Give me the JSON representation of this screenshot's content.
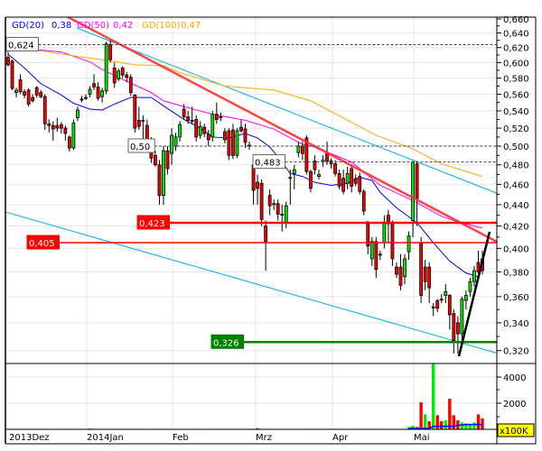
{
  "legend": [
    {
      "label": "GD(20)",
      "value": "0,38",
      "color": "#0000ee"
    },
    {
      "label": "GD(50)",
      "value": "0,42",
      "color": "#ff00ff"
    },
    {
      "label": "GD(100)",
      "value": "0,47",
      "color": "#ffa500"
    }
  ],
  "colors": {
    "up": "#00ee00",
    "down": "#ff0000",
    "trend_red": "#ff3030",
    "channel": "#00b0f0",
    "support_green": "#008000",
    "volume_avg": "#0000ff",
    "grid": "#e6e6e6"
  },
  "price_axis": {
    "scale": "log",
    "ticks": [
      0.66,
      0.64,
      0.62,
      0.6,
      0.58,
      0.56,
      0.54,
      0.52,
      0.5,
      0.48,
      0.46,
      0.44,
      0.42,
      0.4,
      0.38,
      0.36,
      0.34,
      0.32
    ],
    "labels": [
      "0,660",
      "0,640",
      "0,620",
      "0,600",
      "0,580",
      "0,560",
      "0,540",
      "0,520",
      "0,500",
      "0,480",
      "0,460",
      "0,440",
      "0,420",
      "0,400",
      "0,380",
      "0,360",
      "0,340",
      "0,320"
    ]
  },
  "volume_axis": {
    "ticks": [
      4000,
      2000
    ],
    "labels": [
      "4000",
      "2000"
    ],
    "unit": "x100K"
  },
  "x_axis": {
    "labels": [
      "2013Dez",
      "2014Jan",
      "Feb",
      "Mrz",
      "Apr",
      "Mai"
    ]
  },
  "levels": [
    {
      "label": "0,624",
      "value": 0.624,
      "style": "dashed"
    },
    {
      "label": "0,50",
      "value": 0.5,
      "style": "dashed"
    },
    {
      "label": "0,483",
      "value": 0.483,
      "style": "dashed"
    },
    {
      "label": "0,423",
      "value": 0.423,
      "style": "red-thick"
    },
    {
      "label": "0,405",
      "value": 0.405,
      "style": "red-thin"
    },
    {
      "label": "0,326",
      "value": 0.326,
      "style": "green"
    }
  ],
  "chart_data": {
    "type": "candlestick",
    "ohlc_order": [
      "open",
      "high",
      "low",
      "close"
    ],
    "candles": [
      [
        0.607,
        0.615,
        0.595,
        0.597
      ],
      [
        0.602,
        0.604,
        0.565,
        0.567
      ],
      [
        0.562,
        0.568,
        0.556,
        0.565
      ],
      [
        0.578,
        0.585,
        0.56,
        0.563
      ],
      [
        0.563,
        0.566,
        0.555,
        0.559
      ],
      [
        0.565,
        0.567,
        0.545,
        0.548
      ],
      [
        0.556,
        0.56,
        0.55,
        0.552
      ],
      [
        0.568,
        0.57,
        0.556,
        0.559
      ],
      [
        0.562,
        0.565,
        0.555,
        0.557
      ],
      [
        0.557,
        0.56,
        0.518,
        0.525
      ],
      [
        0.525,
        0.53,
        0.515,
        0.523
      ],
      [
        0.523,
        0.528,
        0.506,
        0.519
      ],
      [
        0.523,
        0.532,
        0.516,
        0.52
      ],
      [
        0.524,
        0.527,
        0.514,
        0.52
      ],
      [
        0.52,
        0.523,
        0.506,
        0.514
      ],
      [
        0.51,
        0.512,
        0.494,
        0.498
      ],
      [
        0.498,
        0.53,
        0.496,
        0.526
      ],
      [
        0.532,
        0.545,
        0.528,
        0.541
      ],
      [
        0.554,
        0.558,
        0.55,
        0.554
      ],
      [
        0.556,
        0.56,
        0.553,
        0.556
      ],
      [
        0.56,
        0.57,
        0.556,
        0.566
      ],
      [
        0.573,
        0.585,
        0.565,
        0.569
      ],
      [
        0.569,
        0.575,
        0.552,
        0.555
      ],
      [
        0.557,
        0.568,
        0.55,
        0.564
      ],
      [
        0.564,
        0.628,
        0.56,
        0.625
      ],
      [
        0.624,
        0.63,
        0.6,
        0.604
      ],
      [
        0.593,
        0.6,
        0.568,
        0.574
      ],
      [
        0.579,
        0.592,
        0.576,
        0.589
      ],
      [
        0.593,
        0.595,
        0.58,
        0.584
      ],
      [
        0.584,
        0.588,
        0.575,
        0.581
      ],
      [
        0.581,
        0.585,
        0.558,
        0.562
      ],
      [
        0.559,
        0.56,
        0.515,
        0.52
      ],
      [
        0.529,
        0.545,
        0.518,
        0.522
      ],
      [
        0.529,
        0.535,
        0.505,
        0.529
      ],
      [
        0.523,
        0.53,
        0.5,
        0.507
      ],
      [
        0.504,
        0.51,
        0.482,
        0.487
      ],
      [
        0.49,
        0.495,
        0.478,
        0.48
      ],
      [
        0.48,
        0.485,
        0.44,
        0.449
      ],
      [
        0.449,
        0.5,
        0.44,
        0.495
      ],
      [
        0.495,
        0.5,
        0.47,
        0.476
      ],
      [
        0.492,
        0.52,
        0.48,
        0.512
      ],
      [
        0.5,
        0.515,
        0.495,
        0.51
      ],
      [
        0.51,
        0.528,
        0.505,
        0.524
      ],
      [
        0.542,
        0.548,
        0.53,
        0.533
      ],
      [
        0.533,
        0.54,
        0.525,
        0.529
      ],
      [
        0.529,
        0.545,
        0.525,
        0.529
      ],
      [
        0.53,
        0.535,
        0.505,
        0.51
      ],
      [
        0.512,
        0.528,
        0.508,
        0.522
      ],
      [
        0.521,
        0.525,
        0.51,
        0.514
      ],
      [
        0.513,
        0.518,
        0.5,
        0.507
      ],
      [
        0.51,
        0.54,
        0.505,
        0.536
      ],
      [
        0.536,
        0.55,
        0.525,
        0.53
      ],
      [
        0.533,
        0.538,
        0.528,
        0.533
      ],
      [
        0.516,
        0.52,
        0.503,
        0.507
      ],
      [
        0.517,
        0.52,
        0.485,
        0.49
      ],
      [
        0.518,
        0.525,
        0.486,
        0.49
      ],
      [
        0.49,
        0.52,
        0.487,
        0.517
      ],
      [
        0.521,
        0.53,
        0.515,
        0.517
      ],
      [
        0.519,
        0.525,
        0.498,
        0.504
      ],
      [
        0.501,
        0.505,
        0.496,
        0.501
      ],
      [
        0.48,
        0.482,
        0.44,
        0.454
      ],
      [
        0.462,
        0.47,
        0.44,
        0.456
      ],
      [
        0.461,
        0.465,
        0.42,
        0.426
      ],
      [
        0.42,
        0.425,
        0.381,
        0.406
      ],
      [
        0.449,
        0.455,
        0.43,
        0.439
      ],
      [
        0.441,
        0.445,
        0.435,
        0.441
      ],
      [
        0.441,
        0.445,
        0.425,
        0.431
      ],
      [
        0.43,
        0.44,
        0.415,
        0.431
      ],
      [
        0.423,
        0.443,
        0.418,
        0.439
      ],
      [
        0.466,
        0.475,
        0.44,
        0.467
      ],
      [
        0.471,
        0.48,
        0.455,
        0.475
      ],
      [
        0.493,
        0.505,
        0.488,
        0.5
      ],
      [
        0.5,
        0.505,
        0.485,
        0.492
      ],
      [
        0.509,
        0.512,
        0.47,
        0.473
      ],
      [
        0.473,
        0.475,
        0.452,
        0.456
      ],
      [
        0.484,
        0.49,
        0.47,
        0.475
      ],
      [
        0.468,
        0.475,
        0.465,
        0.47
      ],
      [
        0.483,
        0.49,
        0.478,
        0.485
      ],
      [
        0.492,
        0.505,
        0.48,
        0.484
      ],
      [
        0.484,
        0.487,
        0.476,
        0.481
      ],
      [
        0.481,
        0.485,
        0.468,
        0.471
      ],
      [
        0.471,
        0.475,
        0.455,
        0.458
      ],
      [
        0.466,
        0.475,
        0.45,
        0.453
      ],
      [
        0.461,
        0.478,
        0.455,
        0.471
      ],
      [
        0.476,
        0.48,
        0.452,
        0.458
      ],
      [
        0.466,
        0.47,
        0.458,
        0.461
      ],
      [
        0.468,
        0.472,
        0.45,
        0.453
      ],
      [
        0.453,
        0.455,
        0.43,
        0.434
      ],
      [
        0.422,
        0.425,
        0.395,
        0.402
      ],
      [
        0.391,
        0.41,
        0.385,
        0.406
      ],
      [
        0.406,
        0.41,
        0.375,
        0.382
      ],
      [
        0.394,
        0.398,
        0.39,
        0.395
      ],
      [
        0.405,
        0.43,
        0.4,
        0.423
      ],
      [
        0.43,
        0.435,
        0.405,
        0.422
      ],
      [
        0.422,
        0.425,
        0.385,
        0.391
      ],
      [
        0.384,
        0.388,
        0.375,
        0.378
      ],
      [
        0.384,
        0.395,
        0.365,
        0.369
      ],
      [
        0.376,
        0.395,
        0.37,
        0.391
      ],
      [
        0.397,
        0.415,
        0.39,
        0.411
      ],
      [
        0.425,
        0.484,
        0.41,
        0.483
      ],
      [
        0.481,
        0.484,
        0.42,
        0.446
      ],
      [
        0.405,
        0.41,
        0.355,
        0.361
      ],
      [
        0.384,
        0.39,
        0.365,
        0.372
      ],
      [
        0.384,
        0.388,
        0.355,
        0.367
      ],
      [
        0.352,
        0.355,
        0.345,
        0.352
      ],
      [
        0.357,
        0.358,
        0.348,
        0.351
      ],
      [
        0.358,
        0.362,
        0.355,
        0.358
      ],
      [
        0.361,
        0.37,
        0.355,
        0.364
      ],
      [
        0.361,
        0.362,
        0.335,
        0.346
      ],
      [
        0.347,
        0.35,
        0.318,
        0.327
      ],
      [
        0.34,
        0.345,
        0.318,
        0.332
      ],
      [
        0.332,
        0.36,
        0.325,
        0.358
      ],
      [
        0.357,
        0.365,
        0.35,
        0.361
      ],
      [
        0.364,
        0.375,
        0.36,
        0.372
      ],
      [
        0.372,
        0.385,
        0.368,
        0.381
      ],
      [
        0.388,
        0.398,
        0.377,
        0.38
      ],
      [
        0.391,
        0.398,
        0.378,
        0.381
      ]
    ],
    "volume": [
      40,
      40,
      40,
      40,
      40,
      40,
      40,
      40,
      40,
      40,
      40,
      40,
      40,
      40,
      40,
      40,
      40,
      40,
      40,
      40,
      80,
      40,
      40,
      40,
      40,
      40,
      40,
      40,
      40,
      40,
      40,
      40,
      40,
      40,
      40,
      40,
      40,
      40,
      40,
      40,
      40,
      40,
      40,
      40,
      40,
      40,
      40,
      40,
      40,
      40,
      40,
      40,
      40,
      40,
      40,
      40,
      40,
      40,
      40,
      40,
      40,
      90,
      40,
      40,
      40,
      40,
      40,
      40,
      40,
      40,
      40,
      40,
      40,
      40,
      40,
      40,
      40,
      40,
      40,
      40,
      40,
      40,
      40,
      40,
      40,
      40,
      40,
      40,
      40,
      40,
      40,
      40,
      40,
      40,
      40,
      40,
      40,
      40,
      185,
      275,
      185,
      2070,
      1150,
      620,
      5200,
      1080,
      620,
      690,
      2340,
      1080,
      690,
      530,
      460,
      390,
      530,
      1150,
      850
    ],
    "volume_up": [
      0,
      0,
      0,
      0,
      0,
      0,
      0,
      0,
      0,
      0,
      1,
      1,
      0,
      0,
      0,
      0,
      0,
      0,
      0,
      1,
      1,
      0,
      0,
      0,
      0,
      0,
      0,
      0,
      0,
      0,
      0,
      0,
      0,
      1,
      1,
      0,
      0,
      0,
      0,
      0,
      0,
      1,
      1,
      1,
      0,
      0,
      0,
      1,
      1,
      0,
      0,
      0,
      0,
      0,
      0,
      0,
      0,
      0,
      0,
      0,
      0,
      0,
      0,
      0,
      0,
      0,
      1,
      1,
      1,
      1,
      1,
      1,
      1,
      0,
      0,
      0,
      0,
      0,
      0,
      0,
      0,
      0,
      0,
      0,
      1,
      1,
      0,
      0,
      0,
      0,
      0,
      0,
      1,
      1,
      1,
      0,
      0,
      0,
      1,
      1,
      0,
      0,
      1,
      0,
      1,
      0,
      0,
      1,
      0,
      0,
      0,
      1,
      1,
      1,
      1,
      0,
      0
    ],
    "volume_average": [
      [
        98,
        0
      ],
      [
        103,
        0
      ],
      [
        104,
        160
      ],
      [
        109,
        160
      ],
      [
        110,
        230
      ],
      [
        112,
        300
      ],
      [
        116,
        300
      ]
    ],
    "moving_averages": [
      {
        "name": "GD(20)",
        "points": [
          [
            0,
            0.611
          ],
          [
            4,
            0.593
          ],
          [
            8,
            0.573
          ],
          [
            13,
            0.559
          ],
          [
            16,
            0.549
          ],
          [
            20,
            0.542
          ],
          [
            23,
            0.541
          ],
          [
            26,
            0.548
          ],
          [
            30,
            0.556
          ],
          [
            35,
            0.556
          ],
          [
            38,
            0.546
          ],
          [
            43,
            0.53
          ],
          [
            47,
            0.52
          ],
          [
            50,
            0.51
          ],
          [
            54,
            0.509
          ],
          [
            58,
            0.514
          ],
          [
            61,
            0.509
          ],
          [
            64,
            0.499
          ],
          [
            67,
            0.483
          ],
          [
            69,
            0.471
          ],
          [
            72,
            0.468
          ],
          [
            75,
            0.462
          ],
          [
            79,
            0.459
          ],
          [
            83,
            0.461
          ],
          [
            86,
            0.467
          ],
          [
            89,
            0.464
          ],
          [
            91,
            0.452
          ],
          [
            95,
            0.437
          ],
          [
            100,
            0.423
          ],
          [
            104,
            0.405
          ],
          [
            108,
            0.389
          ],
          [
            112,
            0.379
          ],
          [
            115,
            0.376
          ]
        ]
      },
      {
        "name": "GD(50)",
        "points": [
          [
            1,
            0.617
          ],
          [
            7,
            0.617
          ],
          [
            13,
            0.614
          ],
          [
            20,
            0.601
          ],
          [
            23,
            0.591
          ],
          [
            29,
            0.576
          ],
          [
            35,
            0.562
          ],
          [
            38,
            0.552
          ],
          [
            43,
            0.545
          ],
          [
            50,
            0.536
          ],
          [
            58,
            0.529
          ],
          [
            65,
            0.519
          ],
          [
            72,
            0.502
          ],
          [
            75,
            0.499
          ],
          [
            84,
            0.483
          ],
          [
            91,
            0.459
          ],
          [
            99,
            0.444
          ],
          [
            106,
            0.429
          ],
          [
            109,
            0.425
          ],
          [
            116,
            0.418
          ]
        ]
      },
      {
        "name": "GD(100)",
        "points": [
          [
            6,
            0.617
          ],
          [
            16,
            0.609
          ],
          [
            24,
            0.603
          ],
          [
            31,
            0.597
          ],
          [
            38,
            0.596
          ],
          [
            42,
            0.587
          ],
          [
            53,
            0.57
          ],
          [
            65,
            0.565
          ],
          [
            74,
            0.552
          ],
          [
            90,
            0.512
          ],
          [
            99,
            0.497
          ],
          [
            106,
            0.481
          ],
          [
            116,
            0.468
          ]
        ]
      }
    ]
  }
}
